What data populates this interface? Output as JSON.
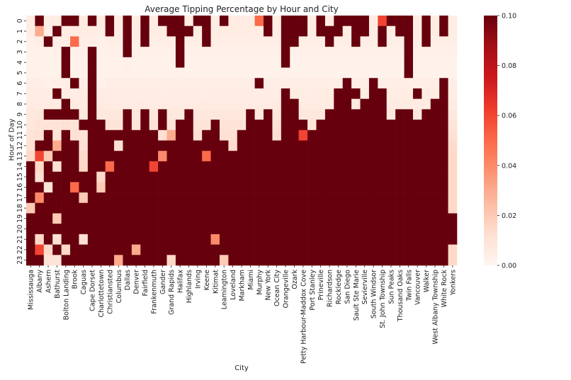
{
  "chart_data": {
    "type": "heatmap",
    "title": "Average Tipping Percentage by Hour and City",
    "xlabel": "City",
    "ylabel": "Hour of Day",
    "colormap": "Reds",
    "color_range": [
      0.0,
      0.1
    ],
    "colorbar_ticks": [
      "0.00",
      "0.02",
      "0.04",
      "0.06",
      "0.08",
      "0.10"
    ],
    "colorbar_colors": [
      "#fff5f0",
      "#fee0d2",
      "#fcbba1",
      "#fc9272",
      "#fb6a4a",
      "#ef3b2c",
      "#cb181d",
      "#a50f15",
      "#67000d"
    ],
    "hours": [
      "0",
      "1",
      "2",
      "3",
      "4",
      "5",
      "6",
      "7",
      "8",
      "9",
      "10",
      "11",
      "12",
      "13",
      "14",
      "15",
      "16",
      "17",
      "18",
      "19",
      "20",
      "21",
      "22",
      "23"
    ],
    "cities": [
      "Mississauga",
      "Albany",
      "Ashern",
      "Bathurst",
      "Bolton Landing",
      "Brook",
      "Caguas",
      "Cape Dorset",
      "Charlottetown",
      "Christiansted",
      "Columbus",
      "Dallas",
      "Denver",
      "Fairfield",
      "Frankenmuth",
      "Gander",
      "Grand Rapids",
      "Halifax",
      "Highlands",
      "Irving",
      "Keene",
      "Kitimat",
      "Leamington",
      "Loveland",
      "Markham",
      "Miami",
      "Murphy",
      "New York",
      "Ocean City",
      "Orangeville",
      "Ozark",
      "Petty Harbour-Maddox Cove",
      "Port Stanley",
      "Prineville",
      "Richardson",
      "Rockledge",
      "San Diego",
      "Sault Ste Marie",
      "Sevierville",
      "South Windsor",
      "St. John Township",
      "Sun  Peaks",
      "Thousand Oaks",
      "Twin Falls",
      "Vancouver",
      "Walker",
      "West Albany Township",
      "White Rock",
      "Yonkers"
    ],
    "values": [
      [
        0.005,
        0.005,
        0.003,
        0.002,
        0.002,
        0.002,
        0.004,
        0.005,
        0.006,
        0.007,
        0.008,
        0.01,
        0.012,
        0.015,
        0.1,
        0.1,
        0.1,
        0.1,
        0.02,
        0.1,
        0.1,
        0.1,
        0.1,
        0.1
      ],
      [
        0.1,
        0.03,
        0.004,
        0.002,
        0.002,
        0.002,
        0.004,
        0.005,
        0.006,
        0.008,
        0.01,
        0.012,
        0.1,
        0.06,
        0.015,
        0.012,
        0.1,
        0.04,
        0.1,
        0.1,
        0.1,
        0.015,
        0.06,
        0.1
      ],
      [
        0.004,
        0.004,
        0.1,
        0.002,
        0.002,
        0.002,
        0.003,
        0.005,
        0.006,
        0.1,
        0.01,
        0.1,
        0.1,
        0.02,
        0.1,
        0.1,
        0.01,
        0.1,
        0.1,
        0.1,
        0.1,
        0.1,
        0.015,
        0.01
      ],
      [
        0.005,
        0.1,
        0.004,
        0.003,
        0.002,
        0.002,
        0.004,
        0.1,
        0.006,
        0.1,
        0.01,
        0.01,
        0.03,
        0.1,
        0.012,
        0.1,
        0.1,
        0.1,
        0.1,
        0.02,
        0.1,
        0.012,
        0.1,
        0.01
      ],
      [
        0.1,
        0.005,
        0.004,
        0.1,
        0.1,
        0.1,
        0.004,
        0.005,
        0.1,
        0.1,
        0.012,
        0.1,
        0.1,
        0.1,
        0.1,
        0.1,
        0.1,
        0.1,
        0.1,
        0.1,
        0.1,
        0.1,
        0.015,
        0.1
      ],
      [
        0.1,
        0.006,
        0.05,
        0.003,
        0.002,
        0.002,
        0.1,
        0.005,
        0.006,
        0.1,
        0.01,
        0.012,
        0.1,
        0.1,
        0.1,
        0.1,
        0.05,
        0.1,
        0.1,
        0.1,
        0.1,
        0.1,
        0.1,
        0.1
      ],
      [
        0.005,
        0.005,
        0.004,
        0.003,
        0.002,
        0.002,
        0.004,
        0.005,
        0.006,
        0.007,
        0.1,
        0.01,
        0.012,
        0.014,
        0.015,
        0.1,
        0.1,
        0.02,
        0.1,
        0.1,
        0.1,
        0.012,
        0.1,
        0.1
      ],
      [
        0.1,
        0.005,
        0.004,
        0.1,
        0.1,
        0.1,
        0.1,
        0.1,
        0.1,
        0.1,
        0.1,
        0.1,
        0.1,
        0.1,
        0.1,
        0.1,
        0.1,
        0.1,
        0.1,
        0.1,
        0.1,
        0.1,
        0.1,
        0.1
      ],
      [
        0.005,
        0.004,
        0.003,
        0.002,
        0.002,
        0.002,
        0.003,
        0.005,
        0.006,
        0.007,
        0.1,
        0.1,
        0.1,
        0.1,
        0.1,
        0.015,
        0.02,
        0.1,
        0.1,
        0.1,
        0.1,
        0.1,
        0.1,
        0.1
      ],
      [
        0.1,
        0.1,
        0.004,
        0.003,
        0.002,
        0.002,
        0.004,
        0.005,
        0.006,
        0.008,
        0.01,
        0.1,
        0.1,
        0.1,
        0.05,
        0.1,
        0.1,
        0.1,
        0.1,
        0.1,
        0.1,
        0.1,
        0.1,
        0.1
      ],
      [
        0.005,
        0.005,
        0.004,
        0.003,
        0.002,
        0.002,
        0.004,
        0.005,
        0.006,
        0.008,
        0.01,
        0.1,
        0.012,
        0.1,
        0.1,
        0.1,
        0.1,
        0.1,
        0.1,
        0.1,
        0.1,
        0.1,
        0.1,
        0.03
      ],
      [
        0.1,
        0.1,
        0.1,
        0.1,
        0.003,
        0.003,
        0.004,
        0.005,
        0.006,
        0.1,
        0.1,
        0.1,
        0.1,
        0.1,
        0.1,
        0.1,
        0.1,
        0.1,
        0.1,
        0.1,
        0.1,
        0.1,
        0.1,
        0.1
      ],
      [
        0.005,
        0.005,
        0.004,
        0.003,
        0.002,
        0.002,
        0.004,
        0.005,
        0.006,
        0.008,
        0.01,
        0.1,
        0.1,
        0.1,
        0.1,
        0.1,
        0.1,
        0.1,
        0.1,
        0.1,
        0.1,
        0.1,
        0.03,
        0.1
      ],
      [
        0.1,
        0.1,
        0.1,
        0.003,
        0.002,
        0.002,
        0.004,
        0.005,
        0.006,
        0.1,
        0.1,
        0.1,
        0.1,
        0.1,
        0.1,
        0.1,
        0.1,
        0.1,
        0.1,
        0.1,
        0.1,
        0.1,
        0.1,
        0.1
      ],
      [
        0.006,
        0.005,
        0.004,
        0.003,
        0.002,
        0.002,
        0.004,
        0.005,
        0.006,
        0.008,
        0.01,
        0.1,
        0.1,
        0.1,
        0.06,
        0.1,
        0.1,
        0.1,
        0.1,
        0.1,
        0.1,
        0.1,
        0.1,
        0.1
      ],
      [
        0.1,
        0.005,
        0.004,
        0.003,
        0.002,
        0.002,
        0.004,
        0.005,
        0.006,
        0.1,
        0.1,
        0.012,
        0.1,
        0.04,
        0.1,
        0.1,
        0.1,
        0.1,
        0.1,
        0.1,
        0.1,
        0.1,
        0.1,
        0.1
      ],
      [
        0.1,
        0.1,
        0.004,
        0.003,
        0.002,
        0.002,
        0.004,
        0.005,
        0.006,
        0.008,
        0.01,
        0.03,
        0.1,
        0.1,
        0.1,
        0.1,
        0.1,
        0.1,
        0.1,
        0.1,
        0.1,
        0.1,
        0.1,
        0.015
      ],
      [
        0.1,
        0.1,
        0.1,
        0.1,
        0.1,
        0.003,
        0.004,
        0.005,
        0.006,
        0.008,
        0.1,
        0.1,
        0.1,
        0.1,
        0.1,
        0.1,
        0.1,
        0.1,
        0.1,
        0.1,
        0.1,
        0.1,
        0.1,
        0.1
      ],
      [
        0.005,
        0.1,
        0.004,
        0.003,
        0.002,
        0.002,
        0.004,
        0.005,
        0.006,
        0.1,
        0.1,
        0.1,
        0.1,
        0.1,
        0.1,
        0.1,
        0.1,
        0.1,
        0.1,
        0.1,
        0.1,
        0.1,
        0.1,
        0.1
      ],
      [
        0.1,
        0.005,
        0.004,
        0.003,
        0.002,
        0.002,
        0.004,
        0.005,
        0.006,
        0.008,
        0.01,
        0.012,
        0.1,
        0.1,
        0.1,
        0.1,
        0.1,
        0.1,
        0.1,
        0.1,
        0.1,
        0.1,
        0.1,
        0.1
      ],
      [
        0.1,
        0.1,
        0.1,
        0.003,
        0.002,
        0.002,
        0.004,
        0.005,
        0.006,
        0.008,
        0.01,
        0.1,
        0.1,
        0.05,
        0.1,
        0.1,
        0.1,
        0.1,
        0.1,
        0.1,
        0.1,
        0.1,
        0.1,
        0.1
      ],
      [
        0.005,
        0.005,
        0.004,
        0.003,
        0.002,
        0.002,
        0.004,
        0.005,
        0.006,
        0.008,
        0.1,
        0.1,
        0.1,
        0.1,
        0.1,
        0.1,
        0.1,
        0.1,
        0.1,
        0.1,
        0.1,
        0.04,
        0.1,
        0.1
      ],
      [
        0.1,
        0.005,
        0.004,
        0.003,
        0.002,
        0.002,
        0.004,
        0.005,
        0.006,
        0.008,
        0.01,
        0.012,
        0.1,
        0.1,
        0.1,
        0.1,
        0.1,
        0.1,
        0.1,
        0.1,
        0.1,
        0.1,
        0.1,
        0.02
      ],
      [
        0.005,
        0.005,
        0.004,
        0.003,
        0.002,
        0.002,
        0.004,
        0.005,
        0.006,
        0.008,
        0.01,
        0.012,
        0.014,
        0.1,
        0.1,
        0.1,
        0.1,
        0.1,
        0.1,
        0.1,
        0.1,
        0.1,
        0.1,
        0.1
      ],
      [
        0.006,
        0.005,
        0.004,
        0.003,
        0.002,
        0.002,
        0.004,
        0.005,
        0.006,
        0.008,
        0.01,
        0.1,
        0.1,
        0.1,
        0.1,
        0.1,
        0.1,
        0.1,
        0.1,
        0.1,
        0.1,
        0.1,
        0.1,
        0.1
      ],
      [
        0.005,
        0.005,
        0.004,
        0.003,
        0.002,
        0.002,
        0.004,
        0.005,
        0.006,
        0.1,
        0.1,
        0.1,
        0.1,
        0.1,
        0.1,
        0.1,
        0.1,
        0.1,
        0.1,
        0.1,
        0.1,
        0.1,
        0.1,
        0.1
      ],
      [
        0.05,
        0.005,
        0.004,
        0.003,
        0.002,
        0.002,
        0.1,
        0.005,
        0.006,
        0.008,
        0.1,
        0.1,
        0.1,
        0.1,
        0.1,
        0.1,
        0.1,
        0.1,
        0.1,
        0.1,
        0.1,
        0.1,
        0.1,
        0.1
      ],
      [
        0.1,
        0.1,
        0.004,
        0.003,
        0.002,
        0.002,
        0.004,
        0.005,
        0.006,
        0.1,
        0.1,
        0.1,
        0.1,
        0.1,
        0.1,
        0.1,
        0.1,
        0.1,
        0.1,
        0.1,
        0.1,
        0.1,
        0.1,
        0.1
      ],
      [
        0.005,
        0.005,
        0.004,
        0.003,
        0.002,
        0.002,
        0.004,
        0.005,
        0.006,
        0.008,
        0.01,
        0.012,
        0.1,
        0.1,
        0.1,
        0.1,
        0.1,
        0.1,
        0.1,
        0.1,
        0.1,
        0.1,
        0.1,
        0.1
      ],
      [
        0.1,
        0.1,
        0.1,
        0.1,
        0.1,
        0.003,
        0.004,
        0.1,
        0.1,
        0.1,
        0.1,
        0.1,
        0.1,
        0.1,
        0.1,
        0.1,
        0.1,
        0.1,
        0.1,
        0.1,
        0.1,
        0.1,
        0.1,
        0.1
      ],
      [
        0.1,
        0.1,
        0.1,
        0.003,
        0.002,
        0.002,
        0.004,
        0.005,
        0.1,
        0.1,
        0.1,
        0.1,
        0.1,
        0.1,
        0.1,
        0.1,
        0.1,
        0.1,
        0.1,
        0.1,
        0.1,
        0.1,
        0.1,
        0.1
      ],
      [
        0.1,
        0.1,
        0.004,
        0.003,
        0.002,
        0.002,
        0.004,
        0.005,
        0.006,
        0.008,
        0.1,
        0.06,
        0.1,
        0.1,
        0.1,
        0.1,
        0.1,
        0.1,
        0.1,
        0.1,
        0.1,
        0.1,
        0.1,
        0.1
      ],
      [
        0.005,
        0.005,
        0.004,
        0.003,
        0.002,
        0.002,
        0.004,
        0.005,
        0.006,
        0.008,
        0.01,
        0.1,
        0.1,
        0.1,
        0.1,
        0.1,
        0.1,
        0.1,
        0.1,
        0.1,
        0.1,
        0.1,
        0.1,
        0.1
      ],
      [
        0.1,
        0.1,
        0.004,
        0.003,
        0.002,
        0.002,
        0.004,
        0.005,
        0.006,
        0.008,
        0.1,
        0.1,
        0.1,
        0.1,
        0.1,
        0.1,
        0.1,
        0.1,
        0.1,
        0.1,
        0.1,
        0.1,
        0.1,
        0.1
      ],
      [
        0.005,
        0.1,
        0.1,
        0.003,
        0.002,
        0.002,
        0.004,
        0.005,
        0.006,
        0.1,
        0.1,
        0.1,
        0.1,
        0.1,
        0.1,
        0.1,
        0.1,
        0.1,
        0.1,
        0.1,
        0.1,
        0.1,
        0.1,
        0.1
      ],
      [
        0.1,
        0.1,
        0.004,
        0.003,
        0.002,
        0.002,
        0.004,
        0.1,
        0.1,
        0.1,
        0.1,
        0.1,
        0.1,
        0.1,
        0.1,
        0.1,
        0.1,
        0.1,
        0.1,
        0.1,
        0.1,
        0.1,
        0.1,
        0.1
      ],
      [
        0.1,
        0.005,
        0.004,
        0.003,
        0.002,
        0.002,
        0.1,
        0.1,
        0.1,
        0.1,
        0.1,
        0.1,
        0.1,
        0.1,
        0.1,
        0.1,
        0.1,
        0.1,
        0.1,
        0.1,
        0.1,
        0.1,
        0.1,
        0.1
      ],
      [
        0.1,
        0.1,
        0.1,
        0.003,
        0.002,
        0.002,
        0.004,
        0.1,
        0.006,
        0.1,
        0.1,
        0.1,
        0.1,
        0.1,
        0.1,
        0.1,
        0.1,
        0.1,
        0.1,
        0.1,
        0.1,
        0.1,
        0.1,
        0.1
      ],
      [
        0.1,
        0.1,
        0.004,
        0.003,
        0.002,
        0.002,
        0.004,
        0.005,
        0.1,
        0.1,
        0.1,
        0.1,
        0.1,
        0.1,
        0.1,
        0.1,
        0.1,
        0.1,
        0.1,
        0.1,
        0.1,
        0.1,
        0.1,
        0.1
      ],
      [
        0.005,
        0.005,
        0.004,
        0.003,
        0.002,
        0.002,
        0.1,
        0.1,
        0.1,
        0.1,
        0.1,
        0.1,
        0.1,
        0.1,
        0.1,
        0.1,
        0.1,
        0.1,
        0.1,
        0.1,
        0.1,
        0.1,
        0.1,
        0.1
      ],
      [
        0.06,
        0.1,
        0.1,
        0.003,
        0.002,
        0.002,
        0.004,
        0.1,
        0.1,
        0.1,
        0.1,
        0.1,
        0.1,
        0.1,
        0.1,
        0.1,
        0.1,
        0.1,
        0.1,
        0.1,
        0.1,
        0.1,
        0.1,
        0.1
      ],
      [
        0.1,
        0.005,
        0.004,
        0.003,
        0.002,
        0.002,
        0.004,
        0.005,
        0.006,
        0.008,
        0.1,
        0.1,
        0.1,
        0.1,
        0.1,
        0.1,
        0.1,
        0.1,
        0.1,
        0.1,
        0.1,
        0.1,
        0.1,
        0.1
      ],
      [
        0.1,
        0.1,
        0.004,
        0.003,
        0.002,
        0.002,
        0.004,
        0.005,
        0.006,
        0.1,
        0.1,
        0.1,
        0.1,
        0.1,
        0.1,
        0.1,
        0.1,
        0.1,
        0.1,
        0.1,
        0.1,
        0.1,
        0.1,
        0.1
      ],
      [
        0.1,
        0.1,
        0.1,
        0.1,
        0.1,
        0.1,
        0.004,
        0.005,
        0.006,
        0.1,
        0.1,
        0.1,
        0.1,
        0.1,
        0.1,
        0.1,
        0.1,
        0.1,
        0.1,
        0.1,
        0.1,
        0.1,
        0.1,
        0.1
      ],
      [
        0.005,
        0.005,
        0.004,
        0.003,
        0.002,
        0.002,
        0.004,
        0.1,
        0.006,
        0.008,
        0.1,
        0.1,
        0.1,
        0.1,
        0.1,
        0.1,
        0.1,
        0.1,
        0.1,
        0.1,
        0.1,
        0.1,
        0.1,
        0.1
      ],
      [
        0.1,
        0.1,
        0.1,
        0.003,
        0.002,
        0.002,
        0.004,
        0.005,
        0.006,
        0.1,
        0.1,
        0.1,
        0.1,
        0.1,
        0.1,
        0.1,
        0.1,
        0.1,
        0.1,
        0.1,
        0.1,
        0.1,
        0.1,
        0.1
      ],
      [
        0.005,
        0.005,
        0.004,
        0.003,
        0.002,
        0.002,
        0.004,
        0.005,
        0.1,
        0.1,
        0.1,
        0.1,
        0.1,
        0.1,
        0.1,
        0.1,
        0.1,
        0.1,
        0.1,
        0.1,
        0.1,
        0.1,
        0.1,
        0.1
      ],
      [
        0.1,
        0.1,
        0.004,
        0.003,
        0.002,
        0.002,
        0.1,
        0.1,
        0.1,
        0.1,
        0.1,
        0.1,
        0.1,
        0.1,
        0.1,
        0.1,
        0.1,
        0.1,
        0.1,
        0.1,
        0.1,
        0.1,
        0.1,
        0.1
      ],
      [
        0.005,
        0.005,
        0.004,
        0.003,
        0.002,
        0.002,
        0.004,
        0.005,
        0.006,
        0.008,
        0.01,
        0.012,
        0.014,
        0.015,
        0.015,
        0.015,
        0.015,
        0.015,
        0.015,
        0.1,
        0.1,
        0.1,
        0.015,
        0.015
      ]
    ]
  }
}
